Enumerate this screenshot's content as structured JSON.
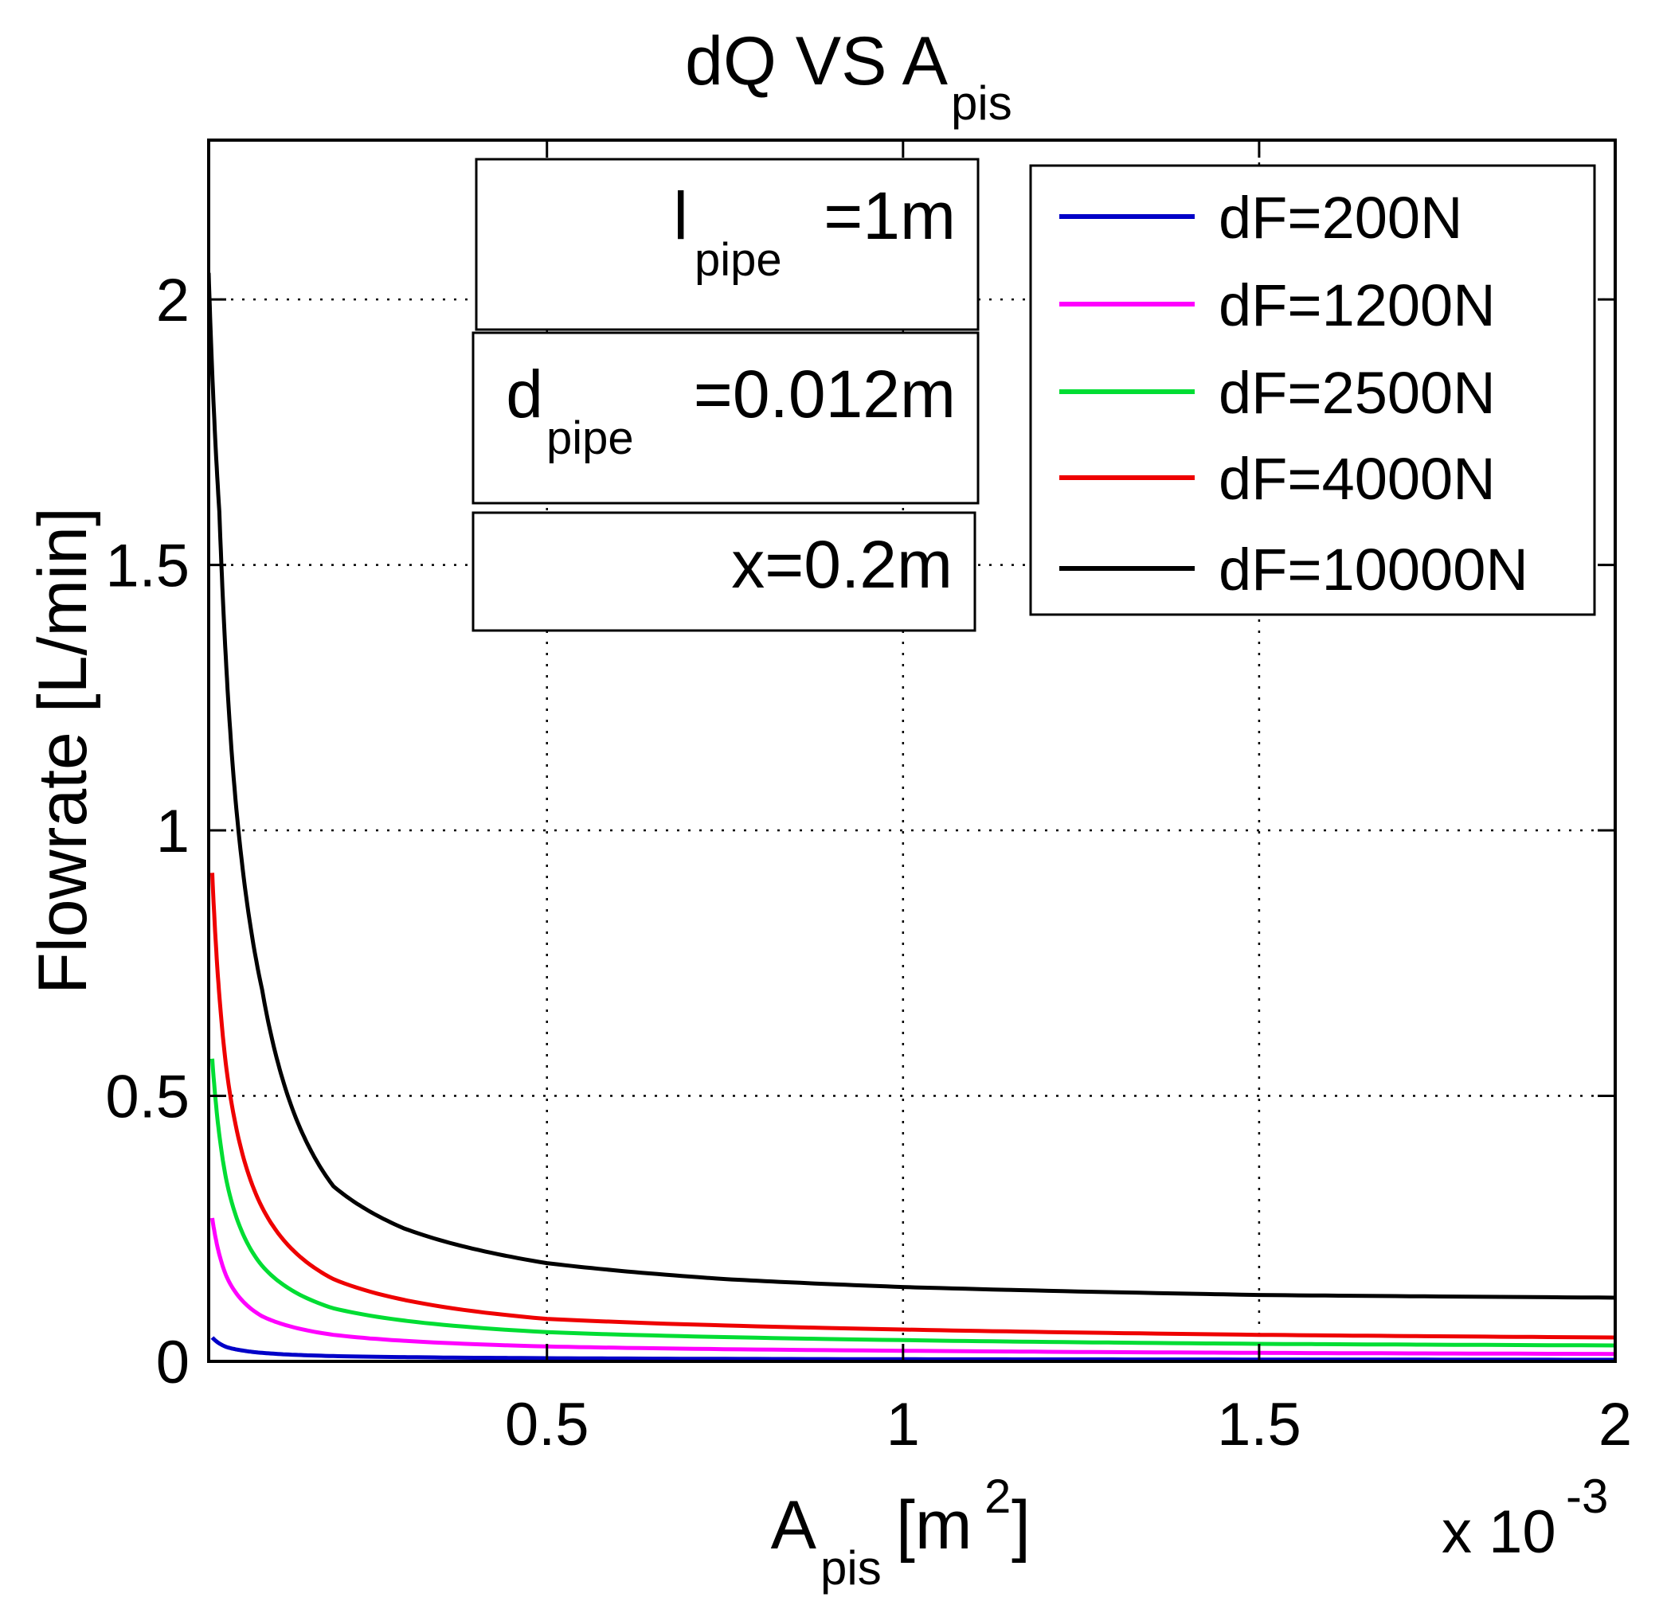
{
  "chart_data": {
    "type": "line",
    "title": {
      "main": "dQ VS  A",
      "sub": "pis"
    },
    "xlabel": {
      "main": "A",
      "sub": "pis",
      "unit_pre": "[m",
      "unit_sup": "2",
      "unit_post": "]"
    },
    "ylabel": "Flowrate  [L/min]",
    "x_multiplier": {
      "text": "x 10",
      "exp": "-3"
    },
    "xlim": [
      2.5e-05,
      0.002
    ],
    "ylim": [
      0,
      2.3
    ],
    "x_ticks": [
      0.0005,
      0.001,
      0.0015,
      0.002
    ],
    "x_tick_labels": [
      "0.5",
      "1",
      "1.5",
      "2"
    ],
    "y_ticks": [
      0,
      0.5,
      1,
      1.5,
      2
    ],
    "y_tick_labels": [
      "0",
      "0.5",
      "1",
      "1.5",
      "2"
    ],
    "grid": true,
    "legend_position": "top-right",
    "annotations": [
      {
        "main": "l",
        "sub": "pipe",
        "post": "=1m"
      },
      {
        "main": "d",
        "sub": "pipe",
        "post": "=0.012m"
      },
      {
        "main": "",
        "sub": "",
        "post": "x=0.2m"
      }
    ],
    "series": [
      {
        "name": "dF=200N",
        "color": "#0000c8",
        "x": [
          3e-05,
          5e-05,
          0.0001,
          0.0002,
          0.0005,
          0.001,
          0.0015,
          0.002
        ],
        "y": [
          0.045,
          0.027,
          0.016,
          0.01,
          0.006,
          0.004,
          0.0035,
          0.003
        ]
      },
      {
        "name": "dF=1200N",
        "color": "#ff00ff",
        "x": [
          3e-05,
          5e-05,
          0.0001,
          0.0002,
          0.0005,
          0.001,
          0.0015,
          0.002
        ],
        "y": [
          0.27,
          0.16,
          0.085,
          0.05,
          0.028,
          0.02,
          0.016,
          0.014
        ]
      },
      {
        "name": "dF=2500N",
        "color": "#00dd33",
        "x": [
          3e-05,
          5e-05,
          0.0001,
          0.0002,
          0.0005,
          0.001,
          0.0015,
          0.002
        ],
        "y": [
          0.57,
          0.34,
          0.18,
          0.1,
          0.055,
          0.04,
          0.033,
          0.03
        ]
      },
      {
        "name": "dF=4000N",
        "color": "#ee0000",
        "x": [
          3e-05,
          5e-05,
          0.0001,
          0.0002,
          0.0005,
          0.001,
          0.0015,
          0.002
        ],
        "y": [
          0.92,
          0.55,
          0.29,
          0.155,
          0.08,
          0.06,
          0.05,
          0.045
        ]
      },
      {
        "name": "dF=10000N",
        "color": "#000000",
        "x": [
          2.5e-05,
          4e-05,
          6e-05,
          0.0001,
          0.00015,
          0.0002,
          0.0003,
          0.0005,
          0.00075,
          0.001,
          0.0015,
          0.002
        ],
        "y": [
          2.05,
          1.6,
          1.1,
          0.7,
          0.45,
          0.33,
          0.25,
          0.185,
          0.155,
          0.14,
          0.125,
          0.12
        ]
      }
    ]
  }
}
